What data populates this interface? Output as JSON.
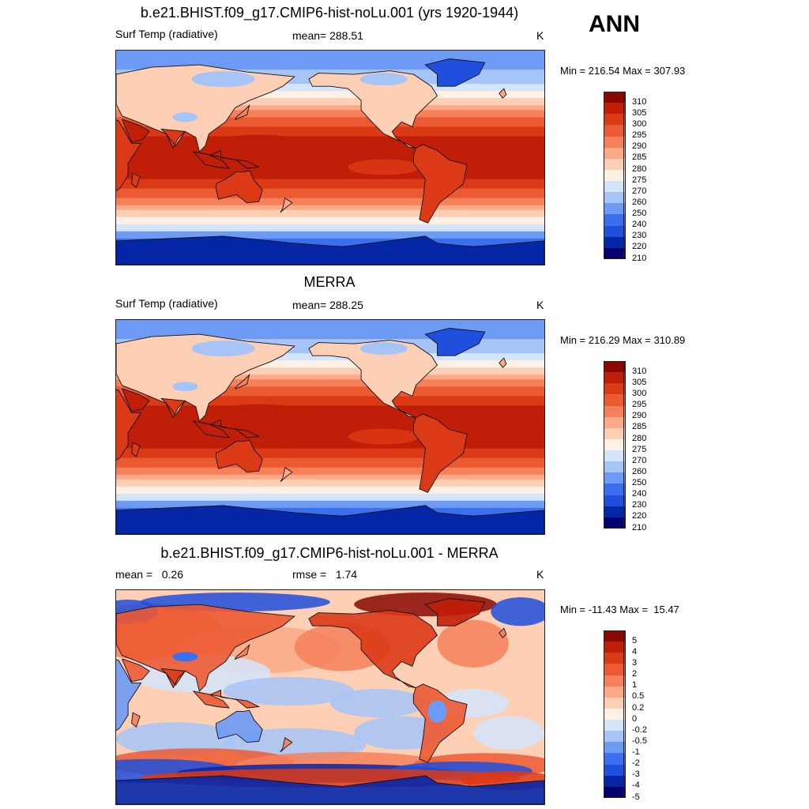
{
  "season": "ANN",
  "colormaps": {
    "temp": [
      "#04006e",
      "#0626a8",
      "#1f4fdc",
      "#3a6ff0",
      "#6d9af5",
      "#a6c4f8",
      "#d4e5fb",
      "#fdf0e4",
      "#fdd0b5",
      "#fba986",
      "#f6805a",
      "#ec5a33",
      "#dc3a17",
      "#c01e08",
      "#8a0800"
    ],
    "diff": [
      "#04006e",
      "#0626a8",
      "#1f4fdc",
      "#3a6ff0",
      "#6d9af5",
      "#a6c4f8",
      "#d4e5fb",
      "#fdf0e4",
      "#fdd0b5",
      "#fba986",
      "#f6805a",
      "#ec5a33",
      "#dc3a17",
      "#c01e08",
      "#8a0800"
    ]
  },
  "panels": [
    {
      "title": "b.e21.BHIST.f09_g17.CMIP6-hist-noLu.001 (yrs 1920-1944)",
      "left_label": "Surf Temp (radiative)",
      "stat_label": "mean= 288.51",
      "units": "K",
      "minmax": "Min = 216.54 Max = 307.93",
      "colorbar_levels": [
        "310",
        "305",
        "300",
        "295",
        "290",
        "285",
        "280",
        "275",
        "270",
        "260",
        "250",
        "240",
        "230",
        "220",
        "210"
      ],
      "kind": "temp"
    },
    {
      "title": "MERRA",
      "left_label": "Surf Temp (radiative)",
      "stat_label": "mean= 288.25",
      "units": "K",
      "minmax": "Min = 216.29 Max = 310.89",
      "colorbar_levels": [
        "310",
        "305",
        "300",
        "295",
        "290",
        "285",
        "280",
        "275",
        "270",
        "260",
        "250",
        "240",
        "230",
        "220",
        "210"
      ],
      "kind": "temp"
    },
    {
      "title": "b.e21.BHIST.f09_g17.CMIP6-hist-noLu.001 - MERRA",
      "left_label": "mean =   0.26",
      "stat_label": "rmse =   1.74",
      "units": "K",
      "minmax": "Min = -11.43 Max =  15.47",
      "colorbar_levels": [
        "5",
        "4",
        "3",
        "2",
        "1",
        "0.5",
        "0.2",
        "0",
        "-0.2",
        "-0.5",
        "-1",
        "-2",
        "-3",
        "-4",
        "-5"
      ],
      "kind": "diff"
    }
  ]
}
